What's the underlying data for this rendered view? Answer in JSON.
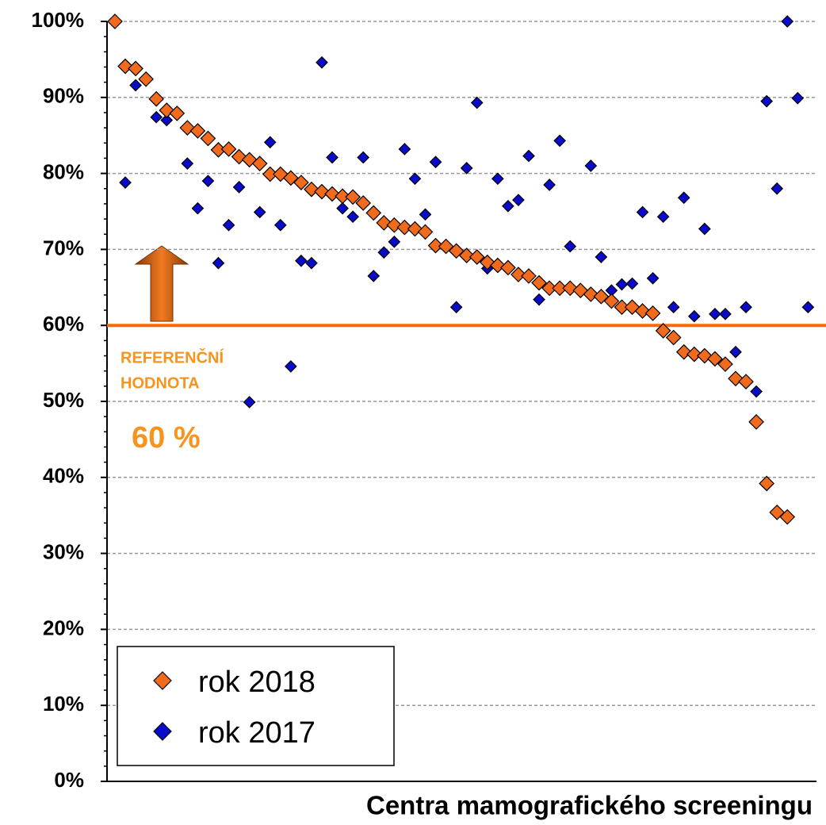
{
  "chart_data": {
    "type": "scatter",
    "x_label": "Centra mamografického screeningu",
    "categories": [
      null,
      null,
      null,
      null,
      null,
      null,
      null,
      null,
      null,
      null,
      null,
      null,
      null,
      null,
      null,
      null,
      null,
      null,
      null,
      null,
      null,
      null,
      null,
      null,
      null,
      null,
      null,
      null,
      null,
      null,
      null,
      null,
      null,
      null,
      null,
      null,
      null,
      null,
      null,
      null,
      null,
      null,
      null,
      null,
      null,
      null,
      null,
      null,
      null,
      null,
      null,
      null,
      null,
      null,
      null,
      null,
      null,
      null,
      null,
      null,
      null,
      null,
      null,
      null,
      null,
      null,
      null,
      null
    ],
    "series": [
      {
        "name": "rok 2018",
        "color": "#f26b1d",
        "values": [
          100,
          94.1,
          93.8,
          92.4,
          89.8,
          88.3,
          87.9,
          86.0,
          85.6,
          84.6,
          83.1,
          83.2,
          82.2,
          81.8,
          81.3,
          79.9,
          79.9,
          79.4,
          78.8,
          77.9,
          77.6,
          77.3,
          77.0,
          76.9,
          76.1,
          74.8,
          73.5,
          73.2,
          72.9,
          72.7,
          72.3,
          70.5,
          70.4,
          69.8,
          69.2,
          69.0,
          68.3,
          67.9,
          67.6,
          66.7,
          66.5,
          65.6,
          64.9,
          64.9,
          64.9,
          64.6,
          64.1,
          63.8,
          63.2,
          62.4,
          62.4,
          61.9,
          61.6,
          59.3,
          58.4,
          56.5,
          56.2,
          56.0,
          55.6,
          54.9,
          53.0,
          52.6,
          47.3,
          39.2,
          35.4,
          34.8,
          null,
          null
        ]
      },
      {
        "name": "rok 2017",
        "color": "#0a0acc",
        "values": [
          null,
          78.8,
          91.6,
          null,
          87.4,
          87.0,
          null,
          81.3,
          75.4,
          79.0,
          68.2,
          73.2,
          78.2,
          49.9,
          74.9,
          84.1,
          73.2,
          54.6,
          68.5,
          68.2,
          94.6,
          82.1,
          75.4,
          74.3,
          82.1,
          66.5,
          69.6,
          71.0,
          83.2,
          79.3,
          74.6,
          81.5,
          null,
          62.4,
          80.7,
          89.3,
          67.5,
          79.3,
          75.7,
          76.5,
          82.3,
          63.4,
          78.5,
          84.3,
          70.4,
          null,
          81.0,
          69.0,
          64.6,
          65.4,
          65.5,
          74.9,
          66.2,
          74.3,
          62.4,
          76.8,
          61.2,
          72.7,
          61.5,
          61.5,
          56.5,
          62.4,
          51.3,
          89.5,
          78.0,
          100,
          89.9,
          62.4
        ]
      }
    ],
    "ylim": [
      0,
      100
    ],
    "yticks": [
      {
        "value": 0,
        "label": "0%"
      },
      {
        "value": 10,
        "label": "10%"
      },
      {
        "value": 20,
        "label": "20%"
      },
      {
        "value": 30,
        "label": "30%"
      },
      {
        "value": 40,
        "label": "40%"
      },
      {
        "value": 50,
        "label": "50%"
      },
      {
        "value": 60,
        "label": "60%"
      },
      {
        "value": 70,
        "label": "70%"
      },
      {
        "value": 80,
        "label": "80%"
      },
      {
        "value": 90,
        "label": "90%"
      },
      {
        "value": 100,
        "label": "100%"
      }
    ],
    "grid": true,
    "reference_line": {
      "value": 60,
      "color": "#ff6a00"
    },
    "annotations": [
      "REFERENČNÍ",
      "HODNOTA",
      "60 %"
    ],
    "legend": "bottom-left"
  }
}
